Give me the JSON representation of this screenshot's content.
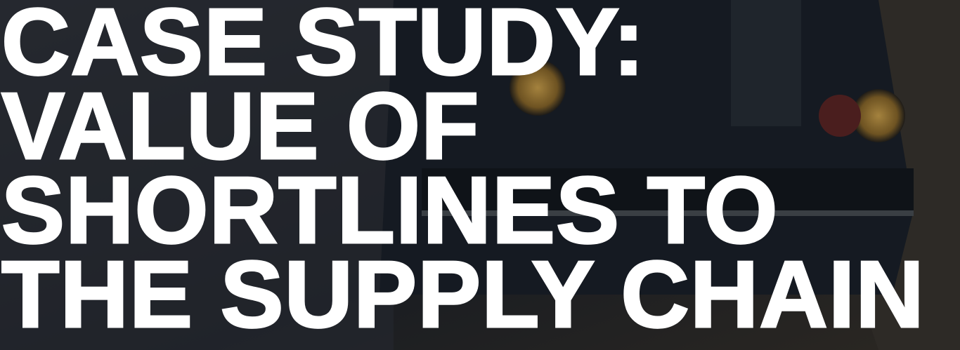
{
  "hero": {
    "title_lines": [
      "CASE STUDY:",
      "VALUE OF",
      "SHORTLINES TO",
      "THE SUPPLY CHAIN"
    ]
  }
}
